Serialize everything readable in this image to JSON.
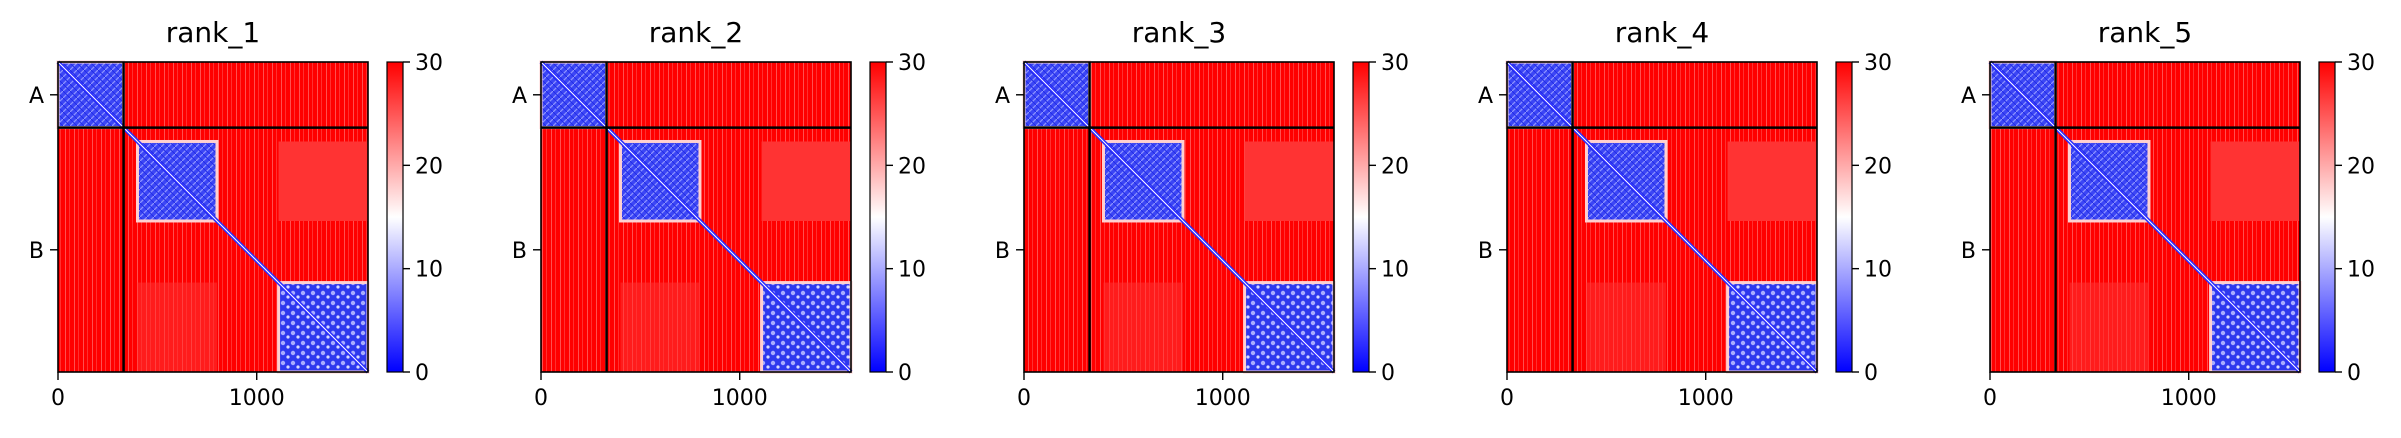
{
  "chart_data": {
    "type": "heatmap",
    "colormap": {
      "name": "bwr",
      "low": "#0000ff",
      "mid": "#ffffff",
      "high": "#ff0000"
    },
    "value_range": [
      0,
      30
    ],
    "colorbar_ticks": [
      "0",
      "10",
      "20",
      "30"
    ],
    "x_ticks": [
      {
        "value": 0,
        "label": "0"
      },
      {
        "value": 1000,
        "label": "1000"
      }
    ],
    "chain_boundary": 330,
    "total_length": 1560,
    "y_tick_labels": [
      {
        "label": "A",
        "value": 165
      },
      {
        "label": "B",
        "value": 945
      }
    ],
    "blocks": [
      {
        "name": "A-A",
        "x": [
          0,
          330
        ],
        "y": [
          0,
          330
        ],
        "level": 6
      },
      {
        "name": "B domain 1",
        "x": [
          400,
          800
        ],
        "y": [
          400,
          800
        ],
        "level": 8
      },
      {
        "name": "B domain 2",
        "x": [
          1110,
          1560
        ],
        "y": [
          1110,
          1560
        ],
        "level": 7
      },
      {
        "name": "B domain 1 - domain 2",
        "x": [
          1110,
          1560
        ],
        "y": [
          400,
          800
        ],
        "level": 27
      }
    ],
    "panels": [
      {
        "title": "rank_1"
      },
      {
        "title": "rank_2"
      },
      {
        "title": "rank_3"
      },
      {
        "title": "rank_4"
      },
      {
        "title": "rank_5"
      }
    ]
  }
}
